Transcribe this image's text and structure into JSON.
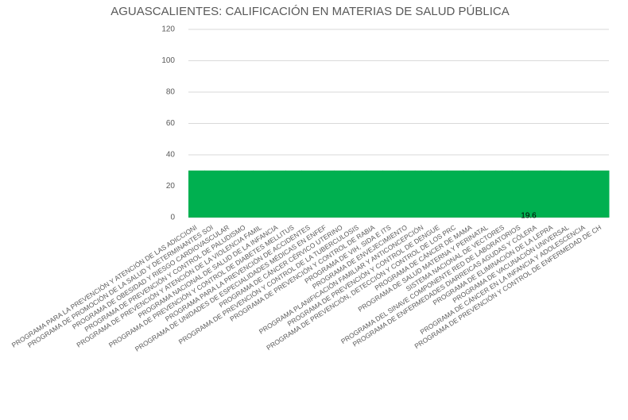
{
  "chart_data": {
    "type": "bar",
    "title": "AGUASCALIENTES: CALIFICACIÓN EN MATERIAS DE SALUD PÚBLICA",
    "categories": [
      "PROGRAMA PARA LA PREVENCIÓN Y ATENCIÓN DE LAS ADICCIONI",
      "PROGRAMA DE PROMOCIÓN DE LA SALUD Y DETERMINANTES SOI",
      "PROGRAMA DE OBESIDAD Y RIESGO CARDIOVASCULAR",
      "PROGRAMA DE PREVENCIÓN Y CONTROL DE PALUDISMO",
      "PROGRAMA DE PREVENCIÓN Y ATENCIÓN DE LA VIOLENCIA FAMIL",
      "PROGRAMA NACIONAL DE SALUD DE LA INFANCIA",
      "PROGRAMA DE PREVENCIÓN Y CONTROL DE DIABETES MELLITUS",
      "PROGRAMA PARA LA PREVENCIÓN DE ACCIDENTES",
      "PROGRAMA DE UNIDADES DE ESPECIALIDADES MÉDICAS EN ENFEF",
      "PROGRAMA DE CÁNCER CÉRVICO UTERINO",
      "PROGRAMA DE PREVENCIÓN Y CONTROL DE LA TUBERCULOSIS",
      "PROGRAMA DE PREVENCIÓN Y CONTROL DE RABIA",
      "PROGRAMA DE VIH, SIDA E ITS",
      "PROGRAMA DE ENVEJECIMIENTO",
      "PROGRAMA PLANIFICACIÓN FAMILIAR Y ANTICONCEPCIÓN",
      "PROGRAMA DE PREVENCIÓN Y CONTROL DE DENGUE",
      "PROGRAMA DE PREVENCIÓN, DETECCIÓN Y CONTROL DE LOS PRC",
      "PROGRAMA DE CÁNCER DE MAMA",
      "PROGRAMA DE SALUD MATERNA Y PERINATAL",
      "SISTEMA NACIONAL DE VECTORES",
      "PROGRAMA DEL SINAVE COMPONENTE RED DE LABORATORIOS",
      "PROGRAMA DE ENFERMEDADES DIARREICAS AGUDAS Y CÓLERA",
      "PROGRAMA DE ELIMINACIÓN DE LA LEPRA",
      "PROGRAMA DE VACUNACIÓN UNIVERSAL",
      "PROGRAMA DE CÁNCER EN LA INFANCIA Y ADOLESCENCIA",
      "PROGRAMA DE PREVENCIÓN Y CONTROL DE ENFERMEDAD DE CH"
    ],
    "values": [
      30,
      30,
      30,
      30,
      30,
      30,
      30,
      30,
      30,
      30,
      30,
      30,
      30,
      30,
      30,
      30,
      30,
      30,
      30,
      30,
      30,
      30,
      30,
      30,
      30,
      30
    ],
    "color": "#00b050",
    "annotation": "19.6",
    "ylim": [
      0,
      120
    ],
    "yticks": [
      0,
      20,
      40,
      60,
      80,
      100,
      120
    ],
    "grid": true
  }
}
